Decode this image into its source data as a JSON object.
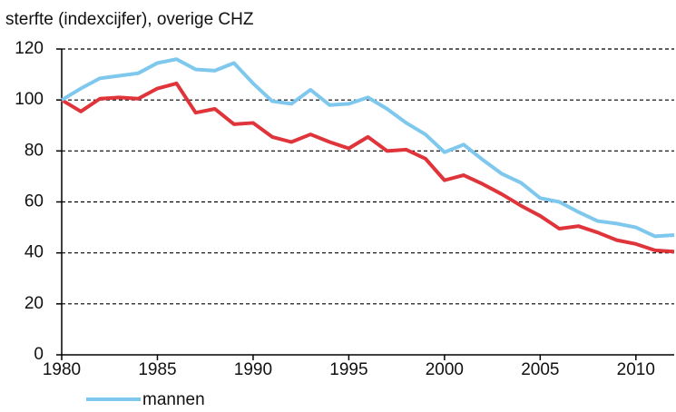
{
  "chart_data": {
    "type": "line",
    "title": "sterfte (indexcijfer), overige CHZ",
    "x": [
      1980,
      1981,
      1982,
      1983,
      1984,
      1985,
      1986,
      1987,
      1988,
      1989,
      1990,
      1991,
      1992,
      1993,
      1994,
      1995,
      1996,
      1997,
      1998,
      1999,
      2000,
      2001,
      2002,
      2003,
      2004,
      2005,
      2006,
      2007,
      2008,
      2009,
      2010,
      2011,
      2012
    ],
    "series": [
      {
        "name": "mannen",
        "color": "#7ec8ee",
        "values": [
          100,
          104.5,
          108.5,
          109.5,
          110.5,
          114.5,
          116,
          112,
          111.5,
          114.5,
          106.5,
          99.5,
          98.5,
          104,
          98,
          98.5,
          101,
          96.5,
          91,
          86.5,
          79.5,
          82.5,
          76.5,
          71,
          67.5,
          61.5,
          60,
          56,
          52.5,
          51.5,
          50,
          46.5,
          47
        ]
      },
      {
        "color": "#e0343b",
        "values": [
          100,
          95.5,
          100.5,
          101,
          100.5,
          104.5,
          106.5,
          95,
          96.5,
          90.5,
          91,
          85.5,
          83.5,
          86.5,
          83.5,
          81,
          85.5,
          80,
          80.5,
          77,
          68.5,
          70.5,
          67,
          63,
          58.5,
          54.5,
          49.5,
          50.5,
          48,
          45,
          43.5,
          41,
          40.5
        ]
      }
    ],
    "xlim": [
      1980,
      2012
    ],
    "xticks": [
      1980,
      1985,
      1990,
      1995,
      2000,
      2005,
      2010
    ],
    "ylim": [
      0,
      120
    ],
    "yticks": [
      0,
      20,
      40,
      60,
      80,
      100,
      120
    ],
    "grid": true
  }
}
